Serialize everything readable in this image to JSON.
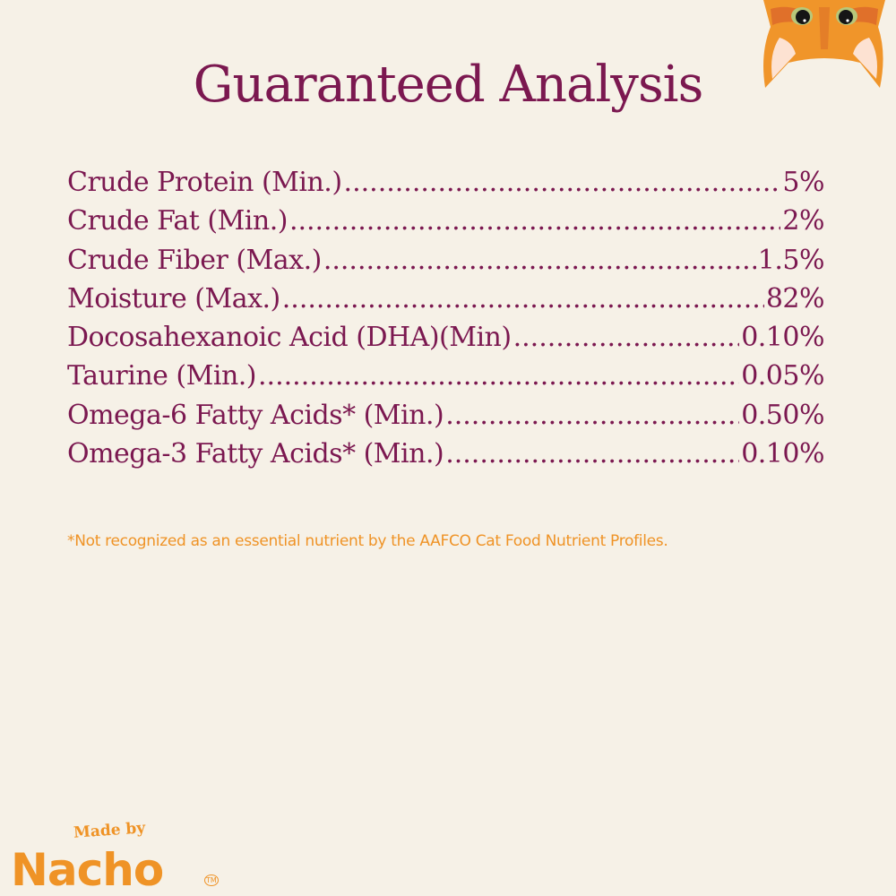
{
  "title": "Guaranteed Analysis",
  "rows": [
    {
      "label": "Crude Protein (Min.)",
      "value": "5%"
    },
    {
      "label": "Crude Fat (Min.)",
      "value": "2%"
    },
    {
      "label": "Crude Fiber (Max.)",
      "value": "1.5%"
    },
    {
      "label": "Moisture (Max.)",
      "value": "82%"
    },
    {
      "label": "Docosahexanoic Acid (DHA)(Min)",
      "value": "0.10%"
    },
    {
      "label": "Taurine (Min.)",
      "value": "0.05%"
    },
    {
      "label": "Omega-6 Fatty Acids* (Min.)",
      "value": "0.50%"
    },
    {
      "label": "Omega-3 Fatty Acids* (Min.)",
      "value": "0.10%"
    }
  ],
  "footnote": "*Not recognized as an essential nutrient by the AAFCO Cat Food Nutrient Profiles.",
  "logo": {
    "tagline": "Made by",
    "brand": "Nacho",
    "tm": "TM"
  },
  "colors": {
    "background": "#f6f1e7",
    "primary": "#7b1850",
    "accent": "#ef9326"
  }
}
